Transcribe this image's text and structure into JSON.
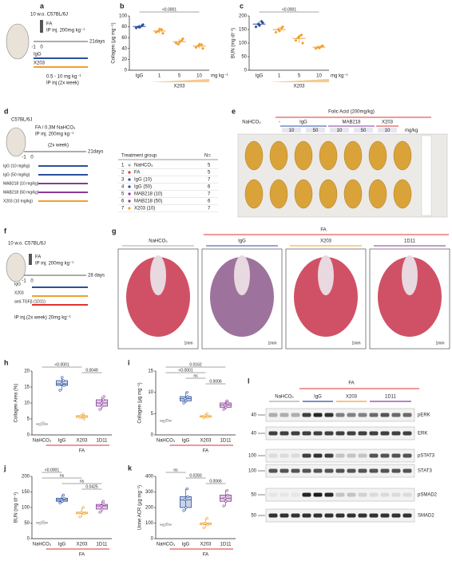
{
  "chart_data": [
    {
      "type": "strip",
      "letter": "b",
      "ylabel": "Collagen (µg mg⁻¹)",
      "categories": [
        "IgG",
        "1",
        "5",
        "10"
      ],
      "group_label": "X203",
      "unit": "mg kg⁻¹",
      "colors": [
        "#2b4fa0",
        "#f0a030",
        "#f0a030",
        "#f0a030"
      ],
      "points": [
        [
          78,
          82,
          80,
          84,
          79
        ],
        [
          70,
          75,
          72,
          68,
          76
        ],
        [
          50,
          55,
          48,
          58,
          52
        ],
        [
          42,
          47,
          45,
          40,
          48
        ]
      ],
      "ylim": [
        0,
        100
      ],
      "yticks": [
        0,
        20,
        40,
        60,
        80,
        100
      ],
      "annotations": [
        "<0.0001"
      ]
    },
    {
      "type": "strip",
      "letter": "c",
      "ylabel": "BUN (mg dl⁻¹)",
      "categories": [
        "IgG",
        "1",
        "5",
        "10"
      ],
      "group_label": "X203",
      "unit": "mg kg⁻¹",
      "colors": [
        "#2b4fa0",
        "#f0a030",
        "#f0a030",
        "#f0a030"
      ],
      "points": [
        [
          160,
          180,
          170,
          175,
          165
        ],
        [
          140,
          155,
          150,
          160,
          145
        ],
        [
          110,
          130,
          120,
          100,
          125
        ],
        [
          80,
          88,
          85,
          90,
          82
        ]
      ],
      "ylim": [
        0,
        200
      ],
      "yticks": [
        0,
        50,
        100,
        150,
        200
      ],
      "annotations": [
        "<0.0001"
      ]
    },
    {
      "type": "box",
      "letter": "h",
      "ylabel": "Collagen Area (%)",
      "categories": [
        "NaHCO₃",
        "IgG",
        "X203",
        "1D11"
      ],
      "group_label": "FA",
      "colors": [
        "#aaaaaa",
        "#2b4fa0",
        "#f0a030",
        "#8a3a9a"
      ],
      "points": [
        [
          3.2,
          3.8,
          3.5,
          3.4
        ],
        [
          14,
          17,
          16,
          15.5,
          18
        ],
        [
          5.5,
          6.5,
          6,
          5
        ],
        [
          8,
          11,
          10,
          12,
          9
        ]
      ],
      "ylim": [
        0,
        20
      ],
      "yticks": [
        0,
        5,
        10,
        15,
        20
      ],
      "annotations": [
        "<0.0001",
        "0.0049"
      ]
    },
    {
      "type": "box",
      "letter": "i",
      "ylabel": "Collagen (µg mg⁻¹)",
      "categories": [
        "NaHCO₃",
        "IgG",
        "X203",
        "1D11"
      ],
      "group_label": "FA",
      "colors": [
        "#aaaaaa",
        "#2b4fa0",
        "#f0a030",
        "#8a3a9a"
      ],
      "points": [
        [
          3.1,
          3.5,
          3.3,
          3.4
        ],
        [
          7.5,
          10,
          8.5,
          9,
          8
        ],
        [
          4,
          5,
          4.5,
          4.2
        ],
        [
          6,
          8,
          7,
          7.5,
          6.5
        ]
      ],
      "ylim": [
        0,
        15
      ],
      "yticks": [
        0,
        5,
        10,
        15
      ],
      "annotations": [
        "0.0162",
        "<0.0001",
        "ns",
        "0.0006"
      ]
    },
    {
      "type": "box",
      "letter": "j",
      "ylabel": "BUN (mg dl⁻¹)",
      "categories": [
        "NaHCO₃",
        "IgG",
        "X203",
        "1D11"
      ],
      "group_label": "FA",
      "colors": [
        "#aaaaaa",
        "#2b4fa0",
        "#f0a030",
        "#8a3a9a"
      ],
      "points": [
        [
          48,
          55,
          52,
          50
        ],
        [
          115,
          140,
          125,
          130,
          120
        ],
        [
          70,
          100,
          85,
          80
        ],
        [
          85,
          120,
          105,
          110,
          95
        ]
      ],
      "ylim": [
        0,
        200
      ],
      "yticks": [
        0,
        50,
        100,
        150,
        200
      ],
      "annotations": [
        "<0.0001",
        "ns",
        "ns",
        "0.0425"
      ]
    },
    {
      "type": "box",
      "letter": "k",
      "ylabel": "Urine ACR (µg mg⁻¹)",
      "categories": [
        "NaHCO₃",
        "IgG",
        "X203",
        "1D11"
      ],
      "group_label": "FA",
      "colors": [
        "#aaaaaa",
        "#2b4fa0",
        "#f0a030",
        "#8a3a9a"
      ],
      "points": [
        [
          85,
          95,
          90,
          92
        ],
        [
          180,
          320,
          250,
          270,
          200
        ],
        [
          70,
          130,
          100,
          90
        ],
        [
          210,
          310,
          260,
          280,
          240
        ]
      ],
      "ylim": [
        0,
        400
      ],
      "yticks": [
        0,
        100,
        200,
        300,
        400
      ],
      "annotations": [
        "ns",
        "0.0283",
        "0.0066"
      ]
    }
  ],
  "panel_a": {
    "letter": "a",
    "mouse": "10 w.o. C57BL/6J",
    "drug": "FA",
    "inj": "IP inj. 200mg kg⁻¹",
    "t1": "-1",
    "t2": "0",
    "t3": "21days",
    "arm1": "IgG",
    "arm2": "X203",
    "dose": "0.5 - 10  mg kg⁻¹",
    "sched": "IP inj.(2x week)"
  },
  "panel_d": {
    "letter": "d",
    "mouse": "C57BL/6J",
    "drug": "FA / 0.3M NaHCO₃",
    "inj": "IP inj. 200mg kg⁻¹",
    "sched": "(2x week)",
    "t1": "-1",
    "t2": "0",
    "t3": "21days",
    "arms": [
      "IgG (10 mg/kg)",
      "IgG (50 mg/kg)",
      "MAB218 (10 mg/kg)",
      "MAB218 (50 mg/kg)",
      "X203 (10 mg/kg)"
    ],
    "table": {
      "header": [
        "Treatment group",
        "N="
      ],
      "rows": [
        [
          "1",
          "NaHCO₃",
          "5"
        ],
        [
          "2",
          "FA",
          "5"
        ],
        [
          "3",
          "IgG (10)",
          "7"
        ],
        [
          "4",
          "IgG (50)",
          "6"
        ],
        [
          "5",
          "MAB218 (10)",
          "7"
        ],
        [
          "6",
          "MAB218 (50)",
          "6"
        ],
        [
          "7",
          "X203 (10)",
          "7"
        ]
      ]
    }
  },
  "panel_e": {
    "letter": "e",
    "title": "Folic Acid (200mg/kg)",
    "control": "NaHCO₃",
    "fa": "-",
    "groups": [
      "IgG",
      "MAB218",
      "X203"
    ],
    "doses": [
      "10",
      "50",
      "10",
      "50",
      "10"
    ],
    "unit": "mg/kg"
  },
  "panel_f": {
    "letter": "f",
    "mouse": "10 w.o. C57BL/6J",
    "drug": "FA",
    "inj": "IP inj. 200mg kg⁻¹",
    "t1": "-1",
    "t2": "0",
    "t3": "28 days",
    "arms": [
      "IgG",
      "X203",
      "anti-TGFβ (1D11)"
    ],
    "sched": "IP inj.(2x week) 20mg kg⁻¹"
  },
  "panel_g": {
    "letter": "g",
    "fa": "FA",
    "groups": [
      "NaHCO₃",
      "IgG",
      "X203",
      "1D11"
    ],
    "scale": "1mm"
  },
  "panel_l": {
    "letter": "l",
    "fa": "FA",
    "groups": [
      "NaHCO₃",
      "IgG",
      "X203",
      "1D11"
    ],
    "rows": [
      "pERK",
      "ERK",
      "pSTAT3",
      "STAT3",
      "pSMAD2",
      "SMAD2"
    ],
    "markers": [
      "40",
      "40",
      "100",
      "100",
      "50",
      "50"
    ]
  },
  "fa_label": "FA"
}
